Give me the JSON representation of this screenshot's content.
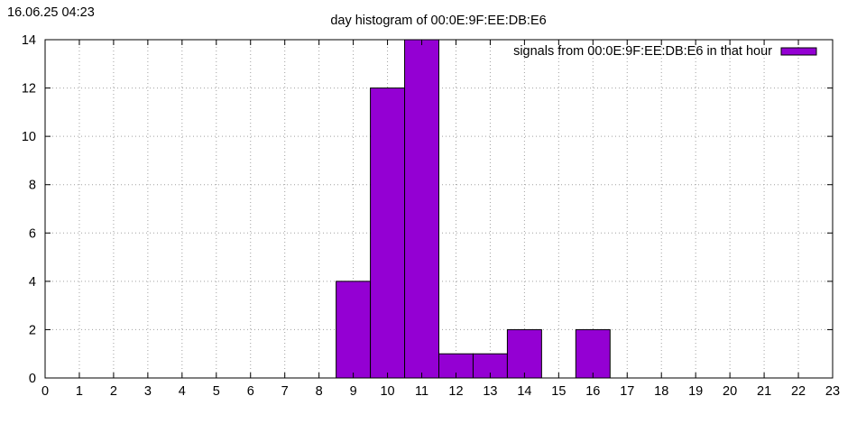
{
  "timestamp": "16.06.25 04:23",
  "chart_data": {
    "type": "bar",
    "title": "day histogram of 00:0E:9F:EE:DB:E6",
    "xlabel": "",
    "ylabel": "",
    "x_ticks": [
      "0",
      "1",
      "2",
      "3",
      "4",
      "5",
      "6",
      "7",
      "8",
      "9",
      "10",
      "11",
      "12",
      "13",
      "14",
      "15",
      "16",
      "17",
      "18",
      "19",
      "20",
      "21",
      "22",
      "23"
    ],
    "xlim": [
      0,
      23
    ],
    "y_ticks": [
      "0",
      "2",
      "4",
      "6",
      "8",
      "10",
      "12",
      "14"
    ],
    "ylim": [
      0,
      14
    ],
    "grid": true,
    "legend_position": "top-right",
    "series": [
      {
        "name": "signals from 00:0E:9F:EE:DB:E6 in that hour",
        "color": "#9400d3",
        "points": [
          {
            "x": 9,
            "y": 4
          },
          {
            "x": 10,
            "y": 12
          },
          {
            "x": 11,
            "y": 14
          },
          {
            "x": 12,
            "y": 1
          },
          {
            "x": 13,
            "y": 1
          },
          {
            "x": 14,
            "y": 2
          },
          {
            "x": 16,
            "y": 2
          }
        ]
      }
    ]
  }
}
